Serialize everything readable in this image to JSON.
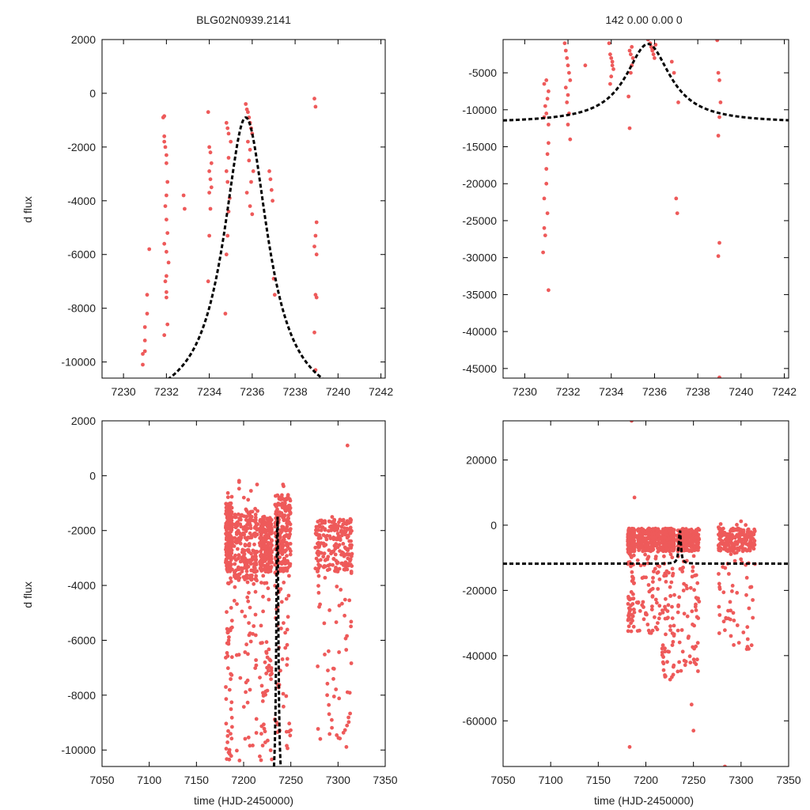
{
  "colors": {
    "points": "#ee5a5a",
    "model": "#000000",
    "frame": "#000000"
  },
  "chart_data": [
    {
      "id": "panel-top-left",
      "type": "scatter",
      "title": "BLG02N0939.2141",
      "xlabel": "",
      "ylabel": "d flux",
      "xlim": [
        7229,
        7242.2
      ],
      "ylim": [
        -10600,
        2000
      ],
      "xticks": [
        7230,
        7232,
        7234,
        7236,
        7238,
        7240,
        7242
      ],
      "xtick_labels": [
        "7230",
        "7232",
        "7234",
        "7236",
        "7238",
        "7240",
        "7242"
      ],
      "yticks": [
        -10000,
        -8000,
        -6000,
        -4000,
        -2000,
        0,
        2000
      ],
      "ytick_labels": [
        "-10000",
        "-8000",
        "-6000",
        "-4000",
        "-2000",
        "0",
        "2000"
      ],
      "series": [
        {
          "name": "data",
          "kind": "points",
          "x": [
            7230.9,
            7230.9,
            7231.0,
            7231.0,
            7231.1,
            7231.1,
            7231.2,
            7231.0,
            7231.85,
            7231.9,
            7231.9,
            7231.9,
            7231.95,
            7232.0,
            7232.0,
            7232.05,
            7232.0,
            7231.95,
            7232.0,
            7232.05,
            7231.9,
            7232.0,
            7232.1,
            7232.0,
            7231.95,
            7232.0,
            7232.0,
            7232.05,
            7231.9,
            7232.8,
            7232.85,
            7233.95,
            7234.0,
            7234.05,
            7234.1,
            7234.0,
            7234.05,
            7234.1,
            7234.0,
            7234.05,
            7234.0,
            7233.95,
            7234.75,
            7234.8,
            7234.85,
            7234.9,
            7234.95,
            7234.85,
            7234.8,
            7234.9,
            7235.0,
            7234.9,
            7234.85,
            7234.8,
            7235.7,
            7235.75,
            7235.8,
            7235.85,
            7235.9,
            7235.95,
            7236.0,
            7235.8,
            7235.9,
            7235.85,
            7236.05,
            7235.95,
            7235.75,
            7235.9,
            7236.0,
            7236.8,
            7236.85,
            7236.9,
            7236.95,
            7237.0,
            7237.05,
            7238.9,
            7238.95,
            7239.0,
            7238.95,
            7238.9,
            7239.0,
            7238.95,
            7239.0,
            7238.9,
            7238.95
          ],
          "y": [
            -10100,
            -9700,
            -9200,
            -8700,
            -8200,
            -7500,
            -5800,
            -9600,
            -900,
            -850,
            -1600,
            -1800,
            -2000,
            -2300,
            -2600,
            -3300,
            -3800,
            -4200,
            -4700,
            -5200,
            -5600,
            -5900,
            -6300,
            -6800,
            -7000,
            -7400,
            -7600,
            -8600,
            -9000,
            -3800,
            -4300,
            -700,
            -2000,
            -2200,
            -2600,
            -2900,
            -3200,
            -3500,
            -3700,
            -4300,
            -5300,
            -7000,
            -8200,
            -6000,
            -5300,
            -4400,
            -3900,
            -3300,
            -2900,
            -2400,
            -1800,
            -1500,
            -1300,
            -1100,
            -400,
            -600,
            -700,
            -900,
            -1100,
            -1300,
            -1500,
            -1800,
            -2100,
            -2500,
            -2900,
            -3300,
            -3700,
            -4200,
            -4500,
            -2900,
            -3200,
            -3600,
            -4000,
            -6900,
            -7500,
            -200,
            -500,
            -4800,
            -5300,
            -5700,
            -6000,
            -7500,
            -7600,
            -8900,
            -10300
          ]
        },
        {
          "name": "model",
          "kind": "dashed-line",
          "peak_t": 7235.7,
          "peak_y": -900,
          "baseline_y": -11800,
          "width": 1.25
        }
      ]
    },
    {
      "id": "panel-top-right",
      "type": "scatter",
      "title": "142   0.00   0.00   0",
      "xlabel": "",
      "ylabel": "",
      "xlim": [
        7229,
        7242.2
      ],
      "ylim": [
        -46300,
        -500
      ],
      "xticks": [
        7230,
        7232,
        7234,
        7236,
        7238,
        7240,
        7242
      ],
      "xtick_labels": [
        "7230",
        "7232",
        "7234",
        "7236",
        "7238",
        "7240",
        "7242"
      ],
      "yticks": [
        -45000,
        -40000,
        -35000,
        -30000,
        -25000,
        -20000,
        -15000,
        -10000,
        -5000
      ],
      "ytick_labels": [
        "-45000",
        "-40000",
        "-35000",
        "-30000",
        "-25000",
        "-20000",
        "-15000",
        "-10000",
        "-5000"
      ],
      "series": [
        {
          "name": "data",
          "kind": "points",
          "x": [
            7230.85,
            7230.9,
            7230.9,
            7231.0,
            7231.0,
            7231.05,
            7231.1,
            7231.1,
            7231.0,
            7230.95,
            7231.05,
            7231.1,
            7230.9,
            7231.0,
            7231.1,
            7230.95,
            7231.05,
            7230.9,
            7231.85,
            7231.9,
            7231.95,
            7232.0,
            7232.05,
            7232.1,
            7231.9,
            7232.0,
            7231.95,
            7232.05,
            7232.0,
            7232.1,
            7232.8,
            7233.9,
            7233.95,
            7234.0,
            7234.05,
            7234.1,
            7234.0,
            7233.95,
            7234.05,
            7234.8,
            7234.85,
            7234.9,
            7234.95,
            7235.0,
            7234.9,
            7234.85,
            7234.95,
            7235.7,
            7235.8,
            7235.85,
            7235.9,
            7235.95,
            7236.0,
            7236.05,
            7235.9,
            7236.8,
            7236.9,
            7237.0,
            7237.05,
            7237.1,
            7238.9,
            7238.95,
            7239.0,
            7239.05,
            7239.0,
            7238.95,
            7239.0,
            7238.95,
            7239.0
          ],
          "y": [
            -29300,
            -26000,
            -22000,
            -20000,
            -18000,
            -16000,
            -14500,
            -12000,
            -10500,
            -9500,
            -8500,
            -7500,
            -6500,
            -6000,
            -34400,
            -27000,
            -24000,
            -11000,
            -1000,
            -2000,
            -3000,
            -4000,
            -5000,
            -6000,
            -7000,
            -8000,
            -9000,
            -10500,
            -12000,
            -14000,
            -4000,
            -1000,
            -2500,
            -3000,
            -3500,
            -4500,
            -5500,
            -6500,
            -4000,
            -8200,
            -12500,
            -5000,
            -4000,
            -3000,
            -2500,
            -2000,
            -1500,
            -500,
            -1000,
            -1500,
            -2000,
            -2500,
            -3000,
            -1200,
            -1800,
            -3500,
            -5000,
            -22000,
            -24000,
            -9000,
            -600,
            -5000,
            -6000,
            -9000,
            -11000,
            -13500,
            -28000,
            -29800,
            -46200
          ]
        },
        {
          "name": "model",
          "kind": "dashed-line",
          "peak_t": 7235.7,
          "peak_y": -1100,
          "baseline_y": -11800,
          "width": 1.25
        }
      ]
    },
    {
      "id": "panel-bottom-left",
      "type": "scatter",
      "title": "",
      "xlabel": "time (HJD-2450000)",
      "ylabel": "d flux",
      "xlim": [
        7050,
        7350
      ],
      "ylim": [
        -10600,
        2000
      ],
      "xticks": [
        7050,
        7100,
        7150,
        7200,
        7250,
        7300,
        7350
      ],
      "xtick_labels": [
        "7050",
        "7100",
        "7150",
        "7200",
        "7250",
        "7300",
        "7350"
      ],
      "yticks": [
        -10000,
        -8000,
        -6000,
        -4000,
        -2000,
        0,
        2000
      ],
      "ytick_labels": [
        "-10000",
        "-8000",
        "-6000",
        "-4000",
        "-2000",
        "0",
        "2000"
      ],
      "series": [
        {
          "name": "data",
          "kind": "dense-points",
          "clusters": [
            {
              "x": [
                7181,
                7188
              ],
              "y_dense": [
                -3500,
                -1000
              ],
              "y_sparse": [
                -10400,
                -400
              ]
            },
            {
              "x": [
                7190,
                7215
              ],
              "y_dense": [
                -3800,
                -1200
              ],
              "y_sparse": [
                -10400,
                100
              ]
            },
            {
              "x": [
                7217,
                7230
              ],
              "y_dense": [
                -3500,
                -1500
              ],
              "y_sparse": [
                -10400,
                -700
              ]
            },
            {
              "x": [
                7233,
                7250
              ],
              "y_dense": [
                -3500,
                -700
              ],
              "y_sparse": [
                -10200,
                -300
              ]
            },
            {
              "x": [
                7276,
                7315
              ],
              "y_dense": [
                -3500,
                -1600
              ],
              "y_sparse": [
                -10400,
                -1300
              ]
            }
          ],
          "extra_x": [
            7310
          ],
          "extra_y": [
            1100
          ]
        },
        {
          "name": "model",
          "kind": "dashed-line",
          "peak_t": 7235.7,
          "peak_y": -900,
          "baseline_y": -11800,
          "width": 1.25
        }
      ]
    },
    {
      "id": "panel-bottom-right",
      "type": "scatter",
      "title": "",
      "xlabel": "time (HJD-2450000)",
      "ylabel": "",
      "xlim": [
        7050,
        7350
      ],
      "ylim": [
        -74000,
        32000
      ],
      "xticks": [
        7050,
        7100,
        7150,
        7200,
        7250,
        7300,
        7350
      ],
      "xtick_labels": [
        "7050",
        "7100",
        "7150",
        "7200",
        "7250",
        "7300",
        "7350"
      ],
      "yticks": [
        -60000,
        -40000,
        -20000,
        0,
        20000
      ],
      "ytick_labels": [
        "-60000",
        "-40000",
        "-20000",
        "0",
        "20000"
      ],
      "series": [
        {
          "name": "data",
          "kind": "dense-points",
          "clusters": [
            {
              "x": [
                7181,
                7188
              ],
              "y_dense": [
                -8000,
                -1000
              ],
              "y_sparse": [
                -33000,
                -1000
              ]
            },
            {
              "x": [
                7190,
                7215
              ],
              "y_dense": [
                -8000,
                -1000
              ],
              "y_sparse": [
                -34000,
                -1000
              ]
            },
            {
              "x": [
                7217,
                7230
              ],
              "y_dense": [
                -8000,
                -1000
              ],
              "y_sparse": [
                -48000,
                -1000
              ]
            },
            {
              "x": [
                7233,
                7256
              ],
              "y_dense": [
                -8000,
                -1000
              ],
              "y_sparse": [
                -45000,
                -1000
              ]
            },
            {
              "x": [
                7276,
                7315
              ],
              "y_dense": [
                -8000,
                -1000
              ],
              "y_sparse": [
                -39000,
                1500
              ]
            }
          ],
          "extra_x": [
            7185,
            7188,
            7183,
            7248,
            7250,
            7283
          ],
          "extra_y": [
            32000,
            8500,
            -68000,
            -55000,
            -63000,
            -74000
          ]
        },
        {
          "name": "model",
          "kind": "dashed-line",
          "peak_t": 7235.7,
          "peak_y": -1100,
          "baseline_y": -11800,
          "width": 1.25
        }
      ]
    }
  ]
}
